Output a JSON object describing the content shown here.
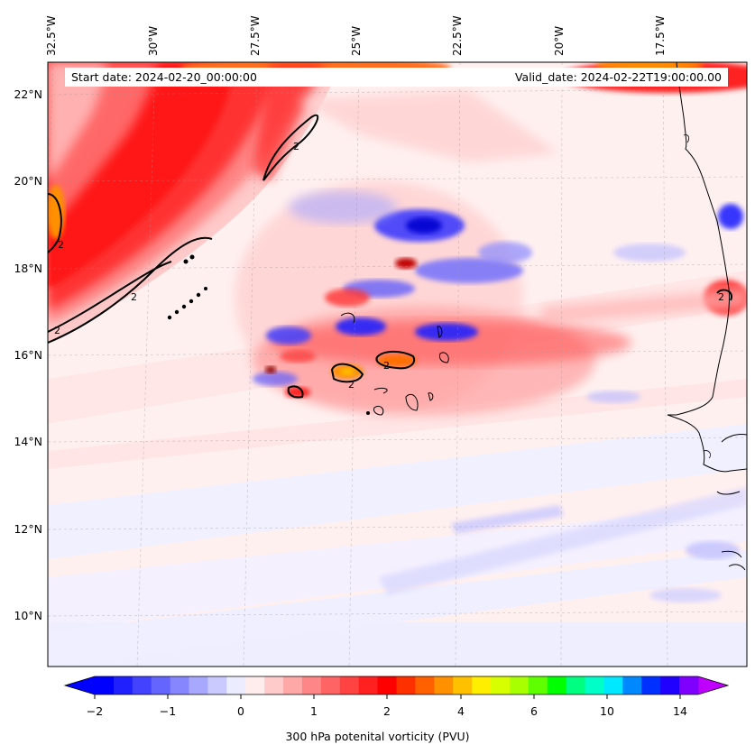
{
  "map": {
    "info": {
      "start_label": "Start date: 2024-02-20_00:00:00",
      "valid_label": "Valid_date: 2024-02-22T19:00:00.00"
    },
    "longitude_labels": [
      "32.5°W",
      "30°W",
      "27.5°W",
      "25°W",
      "22.5°W",
      "20°W",
      "17.5°W"
    ],
    "latitude_labels": [
      "22°N",
      "20°N",
      "18°N",
      "16°N",
      "14°N",
      "12°N",
      "10°N"
    ],
    "contour_level_label": "2",
    "colorbar": {
      "label": "300 hPa potenital vorticity (PVU)",
      "tick_labels": [
        "−2",
        "−1",
        "0",
        "1",
        "2",
        "4",
        "6",
        "10",
        "14"
      ],
      "colors": [
        "#0000ff",
        "#2020ff",
        "#4242ff",
        "#6464ff",
        "#8686ff",
        "#a8a8ff",
        "#cacaff",
        "#ececff",
        "#ffecec",
        "#ffcaca",
        "#ffa8a8",
        "#ff8686",
        "#ff6464",
        "#ff4242",
        "#ff2020",
        "#ff0000",
        "#ff3000",
        "#ff6000",
        "#ff9000",
        "#ffc000",
        "#ffee00",
        "#d8ff00",
        "#a8ff00",
        "#60ff00",
        "#00ff00",
        "#00ff80",
        "#00ffc8",
        "#00e8ff",
        "#0088ff",
        "#0030ff",
        "#2000ff",
        "#8000ff"
      ],
      "under_color": "#0000ff",
      "over_color": "#c000ff"
    }
  }
}
